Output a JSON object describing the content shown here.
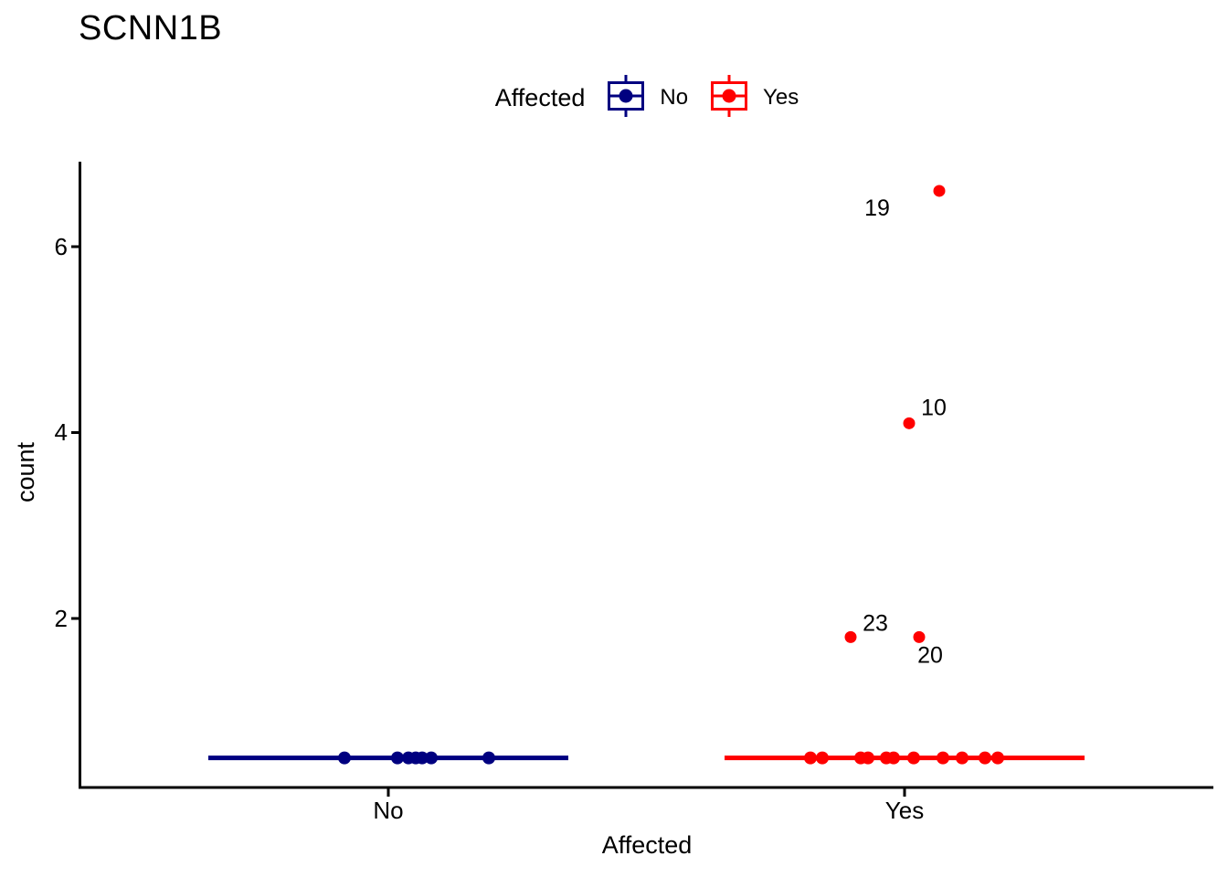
{
  "title": "SCNN1B",
  "legend": {
    "title": "Affected",
    "entries": [
      {
        "label": "No",
        "color": "#000080"
      },
      {
        "label": "Yes",
        "color": "#FF0000"
      }
    ]
  },
  "y_axis": {
    "label": "count",
    "tick_labels": [
      "6",
      "4",
      "2"
    ]
  },
  "x_axis": {
    "label": "Affected",
    "categories": [
      "No",
      "Yes"
    ]
  },
  "chart_data": {
    "type": "boxplot",
    "style": "flattened boxplots (median lines) with jittered points, ggplot classic theme",
    "title": "SCNN1B",
    "xlabel": "Affected",
    "ylabel": "count",
    "categories": [
      "No",
      "Yes"
    ],
    "yticks": [
      6,
      4,
      2
    ],
    "ylim": [
      0.18,
      6.91
    ],
    "grid": false,
    "legend_position": "top",
    "point_color_by": "Affected",
    "series": [
      {
        "name": "No",
        "color": "#000080",
        "median": 0.5,
        "points": [
          {
            "value": 0.5,
            "jitter": -48
          },
          {
            "value": 0.5,
            "jitter": 10
          },
          {
            "value": 0.5,
            "jitter": 22
          },
          {
            "value": 0.5,
            "jitter": 30
          },
          {
            "value": 0.5,
            "jitter": 37
          },
          {
            "value": 0.5,
            "jitter": 47
          },
          {
            "value": 0.5,
            "jitter": 110
          }
        ],
        "outliers": []
      },
      {
        "name": "Yes",
        "color": "#FF0000",
        "median": 0.5,
        "points": [
          {
            "value": 0.5,
            "jitter": -103
          },
          {
            "value": 0.5,
            "jitter": -90
          },
          {
            "value": 0.5,
            "jitter": -48
          },
          {
            "value": 0.5,
            "jitter": -40
          },
          {
            "value": 0.5,
            "jitter": -20
          },
          {
            "value": 0.5,
            "jitter": -12
          },
          {
            "value": 0.5,
            "jitter": 10
          },
          {
            "value": 0.5,
            "jitter": 42
          },
          {
            "value": 0.5,
            "jitter": 63
          },
          {
            "value": 0.5,
            "jitter": 88
          },
          {
            "value": 0.5,
            "jitter": 102
          }
        ],
        "outliers": [
          {
            "label": "19",
            "value": 6.6,
            "jitter": 38,
            "label_dx": -68,
            "label_dy": 19
          },
          {
            "label": "10",
            "value": 4.1,
            "jitter": 5,
            "label_dx": 27,
            "label_dy": -17
          },
          {
            "label": "23",
            "value": 1.8,
            "jitter": -59,
            "label_dx": 27,
            "label_dy": -15
          },
          {
            "label": "20",
            "value": 1.8,
            "jitter": 16,
            "label_dx": 12,
            "label_dy": 20
          }
        ]
      }
    ]
  }
}
